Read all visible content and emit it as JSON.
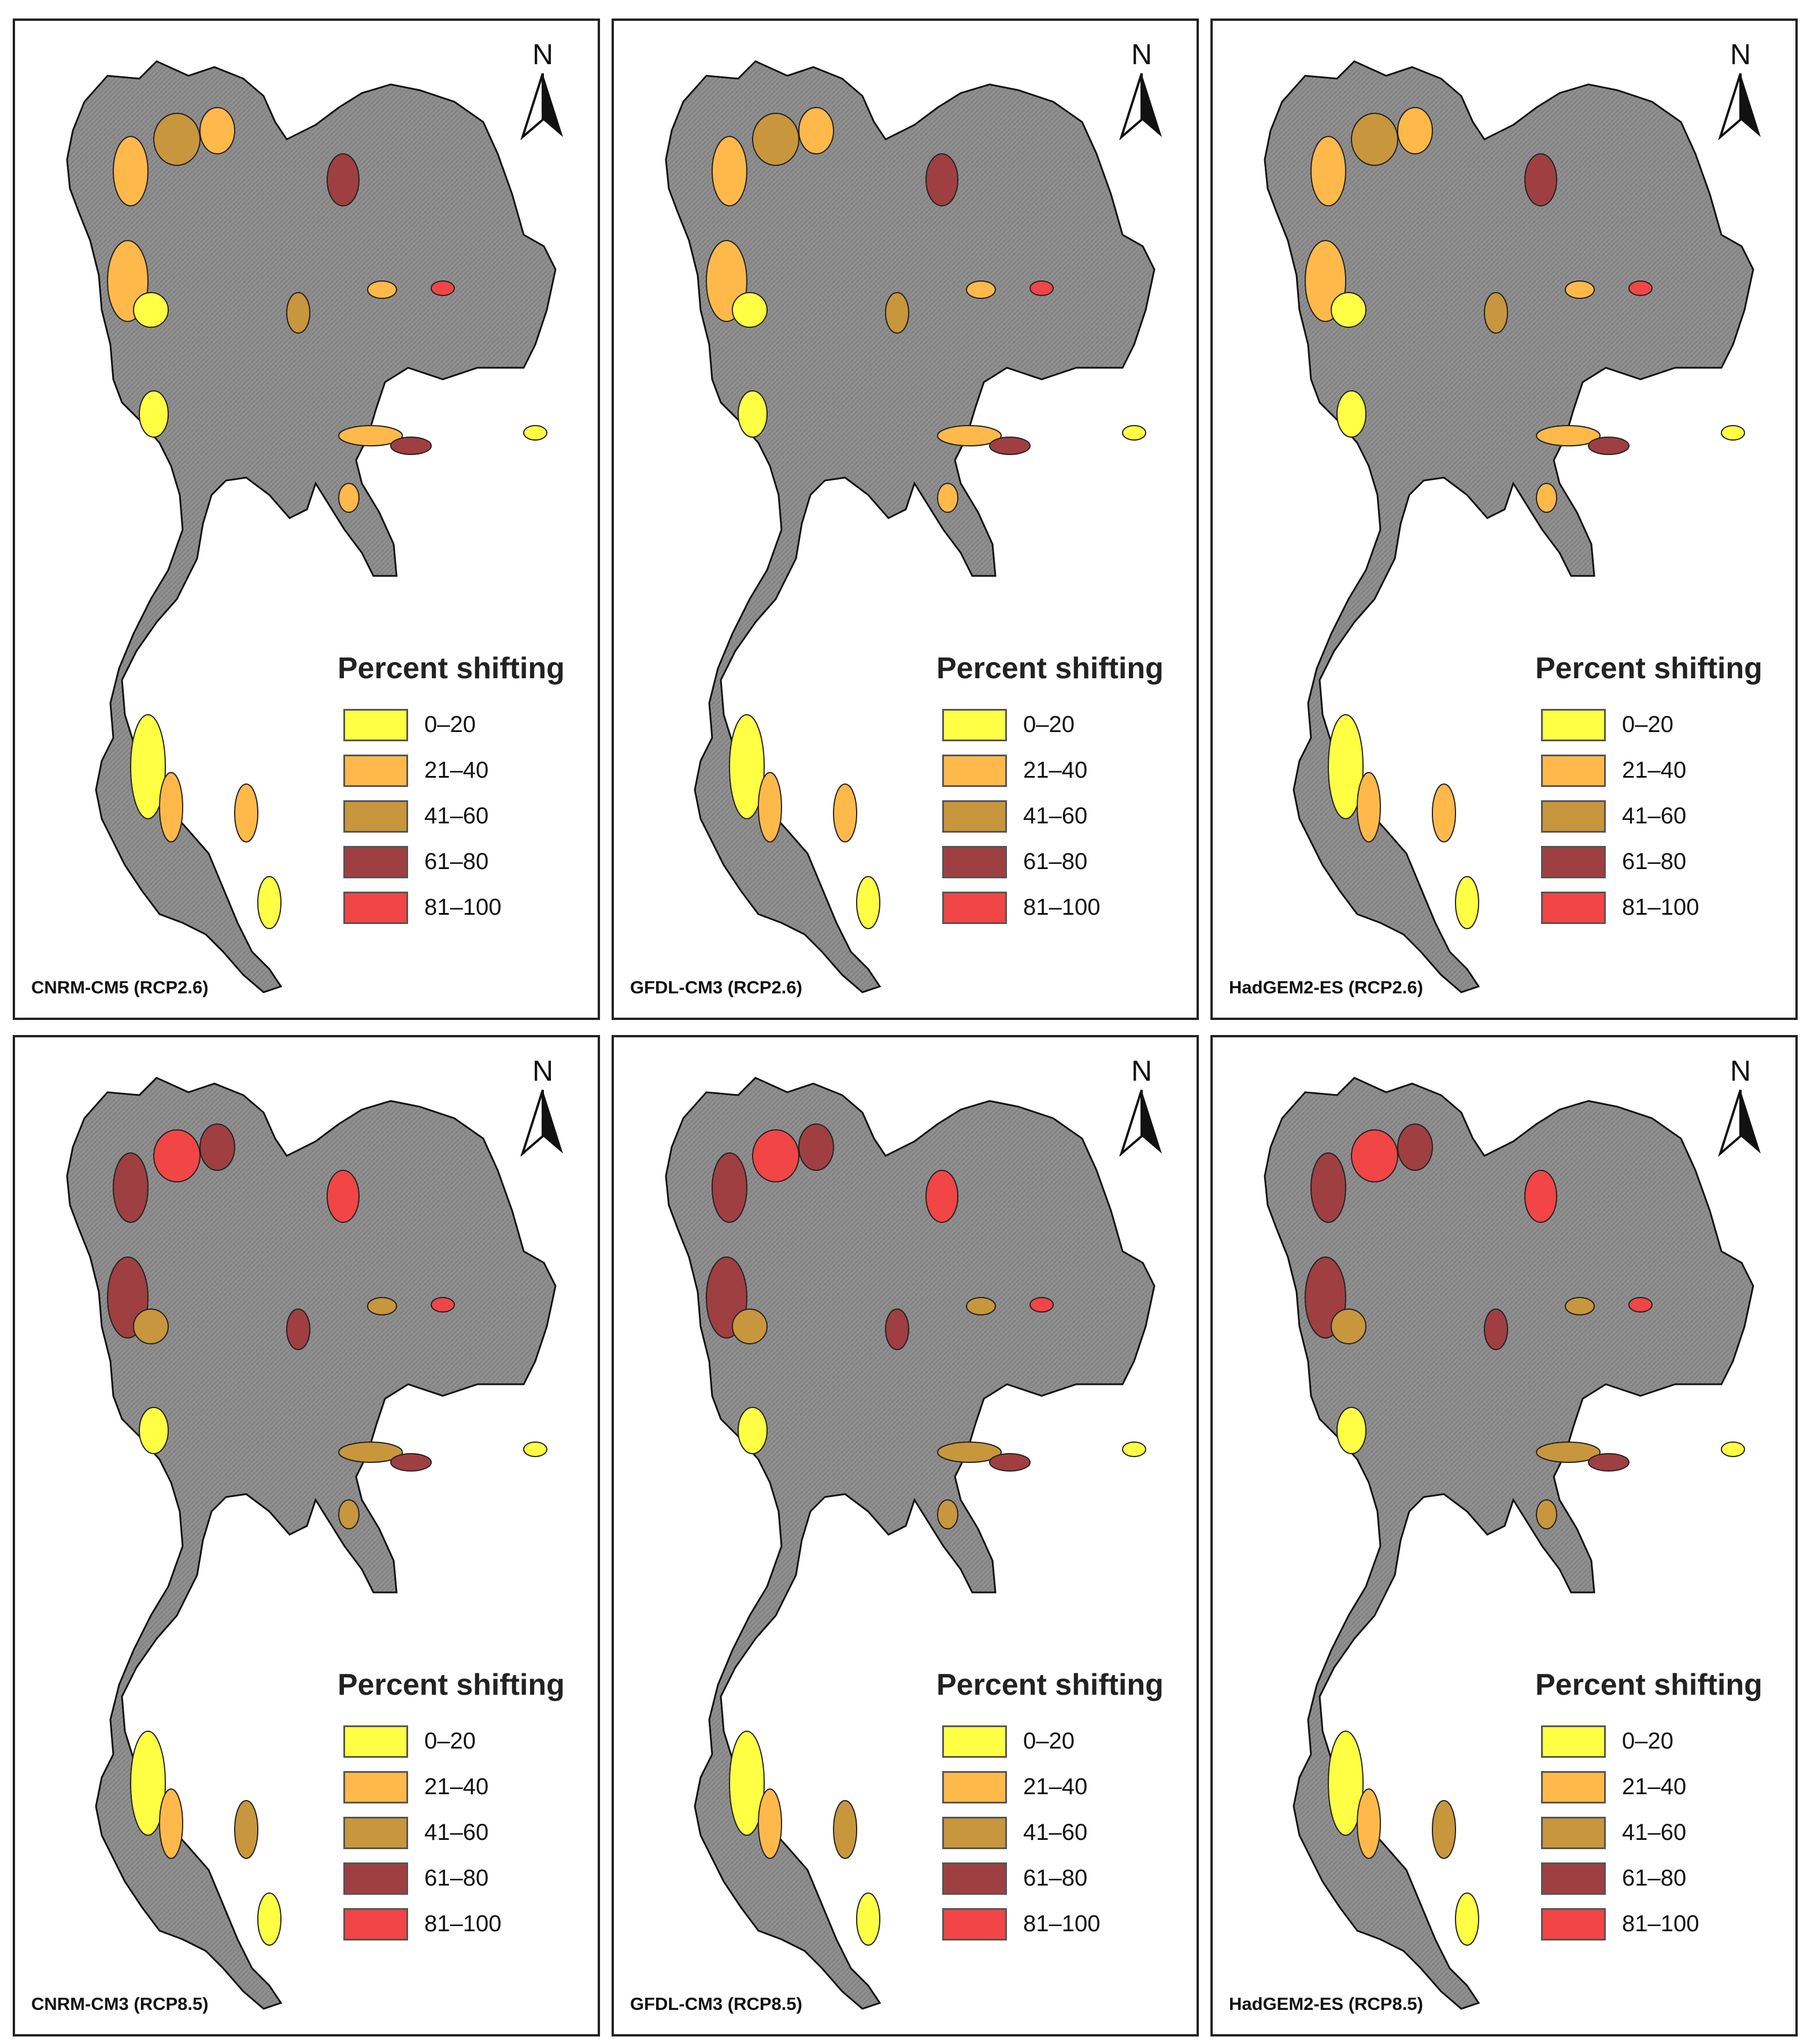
{
  "legend": {
    "title": "Percent shifting",
    "items": [
      {
        "label": "0–20",
        "color": "#ffff44"
      },
      {
        "label": "21–40",
        "color": "#ffb94a"
      },
      {
        "label": "41–60",
        "color": "#c8963c"
      },
      {
        "label": "61–80",
        "color": "#9f3f42"
      },
      {
        "label": "81–100",
        "color": "#f24545"
      }
    ]
  },
  "north_arrow": {
    "letter": "N",
    "icon": "north-arrow-icon"
  },
  "base_map_color": "#8f8f8f",
  "panels": [
    {
      "label": "CNRM-CM5 (RCP2.6)"
    },
    {
      "label": "GFDL-CM3 (RCP2.6)"
    },
    {
      "label": "HadGEM2-ES (RCP2.6)"
    },
    {
      "label": "CNRM-CM3 (RCP8.5)"
    },
    {
      "label": "GFDL-CM3 (RCP8.5)"
    },
    {
      "label": "HadGEM2-ES (RCP8.5)"
    }
  ]
}
